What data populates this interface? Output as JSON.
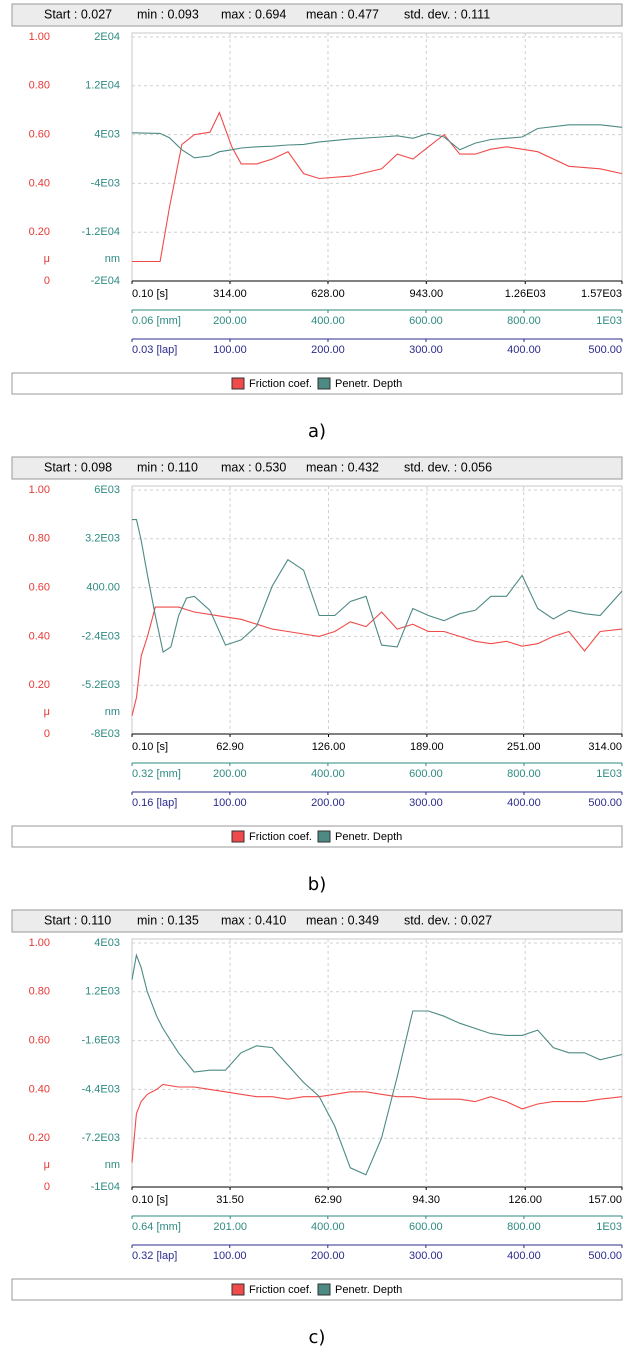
{
  "chart_data": [
    {
      "type": "line",
      "caption": "a)",
      "stats": [
        "Start : 0.027",
        "min : 0.093",
        "max : 0.694",
        "mean : 0.477",
        "std. dev. : 0.111"
      ],
      "y_unit": "μ",
      "y2_unit": "nm",
      "grid": true,
      "x": [
        0.1,
        90,
        120,
        160,
        200,
        250,
        280,
        320,
        350,
        400,
        450,
        500,
        550,
        600,
        700,
        800,
        850,
        900,
        950,
        1000,
        1050,
        1100,
        1150,
        1200,
        1250,
        1300,
        1400,
        1500,
        1570
      ],
      "series": [
        {
          "name": "Friction coef.",
          "color": "#f04a4a",
          "values": [
            0.08,
            0.08,
            0.3,
            0.56,
            0.6,
            0.61,
            0.69,
            0.55,
            0.48,
            0.48,
            0.5,
            0.53,
            0.44,
            0.42,
            0.43,
            0.46,
            0.52,
            0.5,
            0.55,
            0.6,
            0.52,
            0.52,
            0.54,
            0.55,
            0.54,
            0.53,
            0.47,
            0.46,
            0.44
          ]
        },
        {
          "name": "Penetr. Depth",
          "color": "#4d8a84",
          "axis": "y2",
          "values": [
            4300,
            4200,
            3500,
            1500,
            200,
            500,
            1200,
            1500,
            1800,
            2000,
            2100,
            2300,
            2400,
            2800,
            3300,
            3600,
            3800,
            3400,
            4200,
            3600,
            1500,
            2600,
            3200,
            3400,
            3600,
            5000,
            5600,
            5600,
            5200
          ]
        }
      ],
      "ylim": [
        0,
        1
      ],
      "yticks": [
        {
          "value": 1,
          "label": "1.00"
        },
        {
          "value": 0.8,
          "label": "0.80"
        },
        {
          "value": 0.6,
          "label": "0.60"
        },
        {
          "value": 0.4,
          "label": "0.40"
        },
        {
          "value": 0.2,
          "label": "0.20"
        },
        0
      ],
      "y2lim": [
        -20000,
        20000
      ],
      "y2ticks": [
        {
          "value": 20000,
          "label": "2E04"
        },
        {
          "value": 12000,
          "label": "1.2E04"
        },
        {
          "value": 4000,
          "label": "4E03"
        },
        {
          "value": -4000,
          "label": "-4E03"
        },
        {
          "value": -12000,
          "label": "-1.2E04"
        },
        {
          "value": -20000,
          "label": "-2E04"
        }
      ],
      "xlim": [
        0.1,
        1570
      ],
      "xticks": [
        {
          "value": 0.1,
          "label": "0.10 [s]"
        },
        {
          "value": 314,
          "label": "314.00"
        },
        {
          "value": 628,
          "label": "628.00"
        },
        {
          "value": 943,
          "label": "943.00"
        },
        {
          "value": 1260,
          "label": "1.26E03"
        },
        {
          "value": 1570,
          "label": "1.57E03"
        }
      ],
      "x2lim": [
        0.06,
        1000
      ],
      "x2ticks": [
        {
          "value": 0.06,
          "label": "0.06 [mm]"
        },
        {
          "value": 200,
          "label": "200.00"
        },
        {
          "value": 400,
          "label": "400.00"
        },
        {
          "value": 600,
          "label": "600.00"
        },
        {
          "value": 800,
          "label": "800.00"
        },
        {
          "value": 1000,
          "label": "1E03"
        }
      ],
      "x3lim": [
        0.03,
        500
      ],
      "x3ticks": [
        {
          "value": 0.03,
          "label": "0.03 [lap]"
        },
        {
          "value": 100,
          "label": "100.00"
        },
        {
          "value": 200,
          "label": "200.00"
        },
        {
          "value": 300,
          "label": "300.00"
        },
        {
          "value": 400,
          "label": "400.00"
        },
        {
          "value": 500,
          "label": "500.00"
        }
      ]
    },
    {
      "type": "line",
      "caption": "b)",
      "stats": [
        "Start : 0.098",
        "min : 0.110",
        "max : 0.530",
        "mean : 0.432",
        "std. dev. : 0.056"
      ],
      "y_unit": "μ",
      "y2_unit": "nm",
      "grid": true,
      "x": [
        0.1,
        3,
        6,
        10,
        15,
        20,
        25,
        30,
        35,
        40,
        50,
        60,
        70,
        80,
        90,
        100,
        110,
        120,
        130,
        140,
        150,
        160,
        170,
        180,
        190,
        200,
        210,
        220,
        230,
        240,
        250,
        260,
        270,
        280,
        290,
        300,
        314
      ],
      "series": [
        {
          "name": "Friction coef.",
          "color": "#f04a4a",
          "values": [
            0.075,
            0.15,
            0.32,
            0.4,
            0.52,
            0.52,
            0.52,
            0.52,
            0.51,
            0.5,
            0.49,
            0.48,
            0.47,
            0.45,
            0.43,
            0.42,
            0.41,
            0.4,
            0.42,
            0.46,
            0.44,
            0.5,
            0.43,
            0.45,
            0.42,
            0.42,
            0.4,
            0.38,
            0.37,
            0.38,
            0.36,
            0.37,
            0.4,
            0.42,
            0.34,
            0.42,
            0.43
          ]
        },
        {
          "name": "Penetr. Depth",
          "color": "#4d8a84",
          "axis": "y2",
          "values": [
            4300,
            4300,
            3100,
            1100,
            -1200,
            -3300,
            -3000,
            -1200,
            -200,
            -100,
            -900,
            -2900,
            -2600,
            -1800,
            500,
            2000,
            1400,
            -1200,
            -1200,
            -400,
            -100,
            -2900,
            -3000,
            -800,
            -1200,
            -1500,
            -1100,
            -900,
            -100,
            -100,
            1100,
            -800,
            -1400,
            -900,
            -1100,
            -1200,
            200
          ]
        }
      ],
      "ylim": [
        0,
        1
      ],
      "yticks": [
        {
          "value": 1,
          "label": "1.00"
        },
        {
          "value": 0.8,
          "label": "0.80"
        },
        {
          "value": 0.6,
          "label": "0.60"
        },
        {
          "value": 0.4,
          "label": "0.40"
        },
        {
          "value": 0.2,
          "label": "0.20"
        },
        0
      ],
      "y2lim": [
        -8000,
        6000
      ],
      "y2ticks": [
        {
          "value": 6000,
          "label": "6E03"
        },
        {
          "value": 3200,
          "label": "3.2E03"
        },
        {
          "value": 400,
          "label": "400.00"
        },
        {
          "value": -2400,
          "label": "-2.4E03"
        },
        {
          "value": -5200,
          "label": "-5.2E03"
        },
        {
          "value": -8000,
          "label": "-8E03"
        }
      ],
      "xlim": [
        0.1,
        314
      ],
      "xticks": [
        {
          "value": 0.1,
          "label": "0.10 [s]"
        },
        {
          "value": 62.9,
          "label": "62.90"
        },
        {
          "value": 126,
          "label": "126.00"
        },
        {
          "value": 189,
          "label": "189.00"
        },
        {
          "value": 251,
          "label": "251.00"
        },
        {
          "value": 314,
          "label": "314.00"
        }
      ],
      "x2lim": [
        0.32,
        1000
      ],
      "x2ticks": [
        {
          "value": 0.32,
          "label": "0.32 [mm]"
        },
        {
          "value": 200,
          "label": "200.00"
        },
        {
          "value": 400,
          "label": "400.00"
        },
        {
          "value": 600,
          "label": "600.00"
        },
        {
          "value": 800,
          "label": "800.00"
        },
        {
          "value": 1000,
          "label": "1E03"
        }
      ],
      "x3lim": [
        0.16,
        500
      ],
      "x3ticks": [
        {
          "value": 0.16,
          "label": "0.16 [lap]"
        },
        {
          "value": 100,
          "label": "100.00"
        },
        {
          "value": 200,
          "label": "200.00"
        },
        {
          "value": 300,
          "label": "300.00"
        },
        {
          "value": 400,
          "label": "400.00"
        },
        {
          "value": 500,
          "label": "500.00"
        }
      ]
    },
    {
      "type": "line",
      "caption": "c)",
      "stats": [
        "Start : 0.110",
        "min : 0.135",
        "max : 0.410",
        "mean : 0.349",
        "std. dev. : 0.027"
      ],
      "y_unit": "μ",
      "y2_unit": "nm",
      "grid": true,
      "x": [
        0.1,
        1.5,
        3,
        5,
        8,
        10,
        15,
        20,
        25,
        30,
        35,
        40,
        45,
        50,
        55,
        60,
        65,
        70,
        75,
        80,
        85,
        90,
        95,
        100,
        105,
        110,
        115,
        120,
        125,
        130,
        135,
        140,
        145,
        150,
        157
      ],
      "series": [
        {
          "name": "Friction coef.",
          "color": "#f04a4a",
          "values": [
            0.1,
            0.3,
            0.35,
            0.38,
            0.4,
            0.42,
            0.41,
            0.41,
            0.4,
            0.39,
            0.38,
            0.37,
            0.37,
            0.36,
            0.37,
            0.37,
            0.38,
            0.39,
            0.39,
            0.38,
            0.37,
            0.37,
            0.36,
            0.36,
            0.36,
            0.35,
            0.37,
            0.35,
            0.32,
            0.34,
            0.35,
            0.35,
            0.35,
            0.36,
            0.37
          ]
        },
        {
          "name": "Penetr. Depth",
          "color": "#4d8a84",
          "axis": "y2",
          "values": [
            1900,
            3300,
            2600,
            1200,
            -200,
            -900,
            -2300,
            -3400,
            -3300,
            -3300,
            -2300,
            -1900,
            -2000,
            -3000,
            -4000,
            -4800,
            -6500,
            -8900,
            -9300,
            -7200,
            -3700,
            100,
            100,
            -200,
            -600,
            -900,
            -1200,
            -1300,
            -1300,
            -1000,
            -2000,
            -2300,
            -2300,
            -2700,
            -2400
          ]
        }
      ],
      "ylim": [
        0,
        1
      ],
      "yticks": [
        {
          "value": 1,
          "label": "1.00"
        },
        {
          "value": 0.8,
          "label": "0.80"
        },
        {
          "value": 0.6,
          "label": "0.60"
        },
        {
          "value": 0.4,
          "label": "0.40"
        },
        {
          "value": 0.2,
          "label": "0.20"
        },
        0
      ],
      "y2lim": [
        -10000,
        4000
      ],
      "y2ticks": [
        {
          "value": 4000,
          "label": "4E03"
        },
        {
          "value": 1200,
          "label": "1.2E03"
        },
        {
          "value": -1600,
          "label": "-1.6E03"
        },
        {
          "value": -4400,
          "label": "-4.4E03"
        },
        {
          "value": -7200,
          "label": "-7.2E03"
        },
        {
          "value": -10000,
          "label": "-1E04"
        }
      ],
      "xlim": [
        0.1,
        157
      ],
      "xticks": [
        {
          "value": 0.1,
          "label": "0.10 [s]"
        },
        {
          "value": 31.5,
          "label": "31.50"
        },
        {
          "value": 62.9,
          "label": "62.90"
        },
        {
          "value": 94.3,
          "label": "94.30"
        },
        {
          "value": 126,
          "label": "126.00"
        },
        {
          "value": 157,
          "label": "157.00"
        }
      ],
      "x2lim": [
        0.64,
        1000
      ],
      "x2ticks": [
        {
          "value": 0.64,
          "label": "0.64 [mm]"
        },
        {
          "value": 201,
          "label": "201.00"
        },
        {
          "value": 400,
          "label": "400.00"
        },
        {
          "value": 600,
          "label": "600.00"
        },
        {
          "value": 800,
          "label": "800.00"
        },
        {
          "value": 1000,
          "label": "1E03"
        }
      ],
      "x3lim": [
        0.32,
        500
      ],
      "x3ticks": [
        {
          "value": 0.32,
          "label": "0.32 [lap]"
        },
        {
          "value": 100,
          "label": "100.00"
        },
        {
          "value": 200,
          "label": "200.00"
        },
        {
          "value": 300,
          "label": "300.00"
        },
        {
          "value": 400,
          "label": "400.00"
        },
        {
          "value": 500,
          "label": "500.00"
        }
      ]
    }
  ]
}
